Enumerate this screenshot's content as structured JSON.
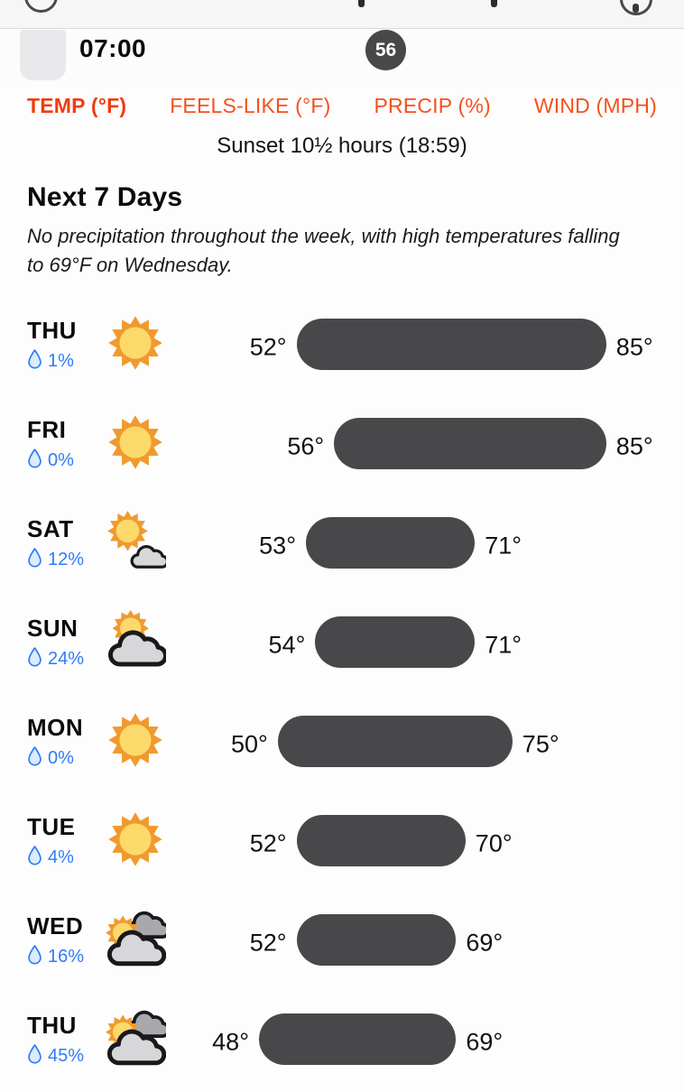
{
  "header": {
    "time_label": "07:00",
    "badge_value": "56"
  },
  "tabs": [
    {
      "id": "temp",
      "label": "TEMP (°F)",
      "active": true
    },
    {
      "id": "feels-like",
      "label": "FEELS-LIKE (°F)",
      "active": false
    },
    {
      "id": "precip",
      "label": "PRECIP (%)",
      "active": false
    },
    {
      "id": "wind",
      "label": "WIND (MPH)",
      "active": false
    }
  ],
  "sunset_note": "Sunset 10½ hours (18:59)",
  "section": {
    "title": "Next 7 Days",
    "summary": "No precipitation throughout the week, with high temperatures falling to 69°F on Wednesday."
  },
  "temp_scale": {
    "min": 48,
    "max": 85
  },
  "days": [
    {
      "day": "THU",
      "precip": "1%",
      "icon": "sunny",
      "low": 52,
      "high": 85,
      "low_label": "52°",
      "high_label": "85°"
    },
    {
      "day": "FRI",
      "precip": "0%",
      "icon": "sunny",
      "low": 56,
      "high": 85,
      "low_label": "56°",
      "high_label": "85°"
    },
    {
      "day": "SAT",
      "precip": "12%",
      "icon": "mostly-sunny",
      "low": 53,
      "high": 71,
      "low_label": "53°",
      "high_label": "71°"
    },
    {
      "day": "SUN",
      "precip": "24%",
      "icon": "partly-cloudy",
      "low": 54,
      "high": 71,
      "low_label": "54°",
      "high_label": "71°"
    },
    {
      "day": "MON",
      "precip": "0%",
      "icon": "sunny",
      "low": 50,
      "high": 75,
      "low_label": "50°",
      "high_label": "75°"
    },
    {
      "day": "TUE",
      "precip": "4%",
      "icon": "sunny",
      "low": 52,
      "high": 70,
      "low_label": "52°",
      "high_label": "70°"
    },
    {
      "day": "WED",
      "precip": "16%",
      "icon": "mostly-cloudy",
      "low": 52,
      "high": 69,
      "low_label": "52°",
      "high_label": "69°"
    },
    {
      "day": "THU",
      "precip": "45%",
      "icon": "mostly-cloudy",
      "low": 48,
      "high": 69,
      "low_label": "48°",
      "high_label": "69°"
    }
  ],
  "colors": {
    "accent": "#F4511E",
    "accent_active": "#EE3D10",
    "blue": "#2E7CF6",
    "bar": "#48484A",
    "badge_bg": "#48484A",
    "sun_ray": "#F09A2E",
    "sun_core": "#FBD96A",
    "cloud_light": "#D7D7DA",
    "cloud_dark": "#A9A9AD"
  }
}
